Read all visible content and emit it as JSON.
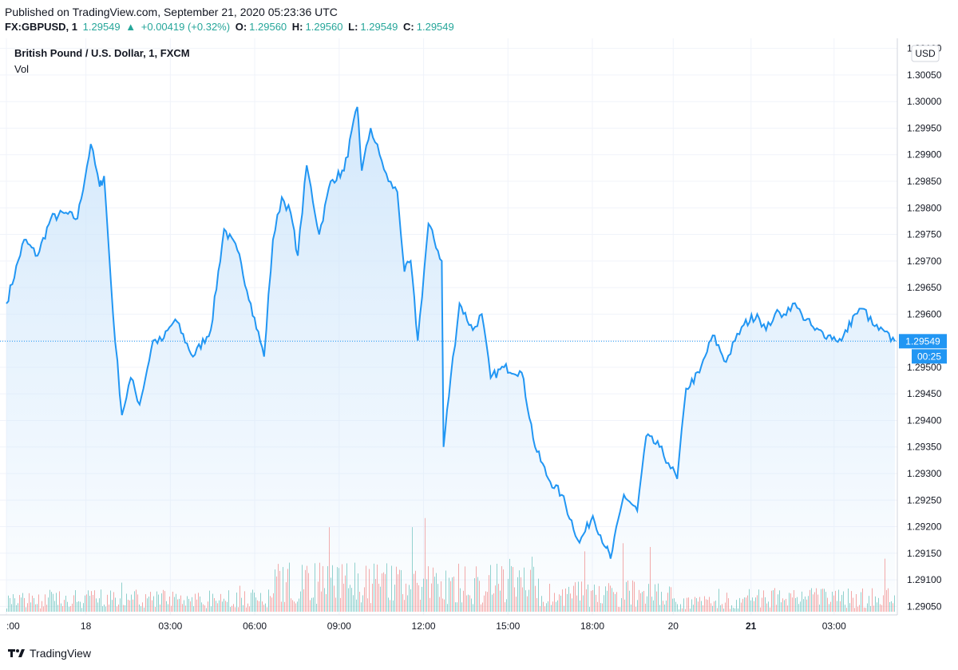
{
  "header": {
    "published": "Published on TradingView.com, September 21, 2020 05:23:36 UTC",
    "symbol": "FX:GBPUSD, 1",
    "last": "1.29549",
    "change": "+0.00419 (+0.32%)",
    "o_label": "O:",
    "o_value": "1.29560",
    "h_label": "H:",
    "h_value": "1.29560",
    "l_label": "L:",
    "l_value": "1.29549",
    "c_label": "C:",
    "c_value": "1.29549"
  },
  "chart_title": "British Pound / U.S. Dollar, 1, FXCM",
  "vol_label": "Vol",
  "currency_label": "USD",
  "countdown": "00:25",
  "footer": {
    "brand": "TradingView"
  },
  "colors": {
    "line": "#2196f3",
    "area_top": "#cfe6fb",
    "vol_up": "#26a69a",
    "vol_down": "#ef5350",
    "grid": "#f0f3fa"
  },
  "chart_data": {
    "type": "area",
    "title": "British Pound / U.S. Dollar, 1, FXCM",
    "ylim": [
      1.2904,
      1.3011
    ],
    "y_ticks": [
      "1.29050",
      "1.29100",
      "1.29150",
      "1.29200",
      "1.29250",
      "1.29300",
      "1.29350",
      "1.29400",
      "1.29450",
      "1.29500",
      "1.29550",
      "1.29600",
      "1.29650",
      "1.29700",
      "1.29750",
      "1.29800",
      "1.29850",
      "1.29900",
      "1.29950",
      "1.30000",
      "1.30050",
      "1.30100"
    ],
    "x_ticks": [
      {
        "label": ":00",
        "pos": 0.0,
        "bold": false
      },
      {
        "label": "18",
        "pos": 0.0895,
        "bold": false
      },
      {
        "label": "03:00",
        "pos": 0.1845,
        "bold": false
      },
      {
        "label": "06:00",
        "pos": 0.2795,
        "bold": false
      },
      {
        "label": "09:00",
        "pos": 0.3745,
        "bold": false
      },
      {
        "label": "12:00",
        "pos": 0.4695,
        "bold": false
      },
      {
        "label": "15:00",
        "pos": 0.5645,
        "bold": false
      },
      {
        "label": "18:00",
        "pos": 0.6595,
        "bold": false
      },
      {
        "label": "20",
        "pos": 0.7505,
        "bold": false
      },
      {
        "label": "21",
        "pos": 0.838,
        "bold": true
      },
      {
        "label": "03:00",
        "pos": 0.9315,
        "bold": false
      }
    ],
    "last_price": 1.29549,
    "series": [
      {
        "x": [
          0,
          0.02,
          0.035,
          0.05,
          0.065,
          0.08,
          0.095,
          0.105,
          0.11,
          0.12,
          0.13,
          0.14,
          0.15,
          0.165,
          0.175,
          0.19,
          0.21,
          0.23,
          0.245,
          0.26,
          0.275,
          0.29,
          0.3,
          0.31,
          0.32,
          0.328,
          0.338,
          0.352,
          0.365,
          0.38,
          0.395,
          0.4,
          0.41,
          0.42,
          0.43,
          0.44,
          0.448,
          0.455,
          0.463,
          0.475,
          0.49,
          0.492,
          0.5,
          0.51,
          0.525,
          0.535,
          0.545,
          0.56,
          0.58,
          0.595,
          0.61,
          0.625,
          0.645,
          0.66,
          0.675,
          0.68,
          0.695,
          0.71,
          0.72,
          0.735,
          0.745,
          0.755,
          0.765,
          0.78,
          0.795,
          0.81,
          0.82,
          0.83,
          0.845,
          0.855,
          0.865,
          0.875,
          0.885,
          0.895,
          0.91,
          0.925,
          0.94,
          0.955,
          0.965,
          0.975,
          1.0
        ],
        "values": [
          1.2962,
          1.2974,
          1.2971,
          1.2978,
          1.2979,
          1.2978,
          1.2992,
          1.2984,
          1.2986,
          1.296,
          1.2941,
          1.2948,
          1.2943,
          1.2955,
          1.2955,
          1.2959,
          1.2952,
          1.2957,
          1.2976,
          1.2972,
          1.2962,
          1.2952,
          1.2974,
          1.2982,
          1.2979,
          1.2971,
          1.2988,
          1.2975,
          1.2985,
          1.2987,
          1.2999,
          1.2987,
          1.2995,
          1.299,
          1.2985,
          1.2983,
          1.2968,
          1.297,
          1.2955,
          1.2977,
          1.297,
          1.2935,
          1.2948,
          1.2962,
          1.2957,
          1.296,
          1.2948,
          1.295,
          1.2949,
          1.2935,
          1.2929,
          1.2926,
          1.2917,
          1.2922,
          1.2916,
          1.2914,
          1.2926,
          1.2923,
          1.2937,
          1.2935,
          1.2932,
          1.2929,
          1.2946,
          1.2949,
          1.2956,
          1.2951,
          1.2955,
          1.2958,
          1.296,
          1.2957,
          1.296,
          1.296,
          1.2962,
          1.296,
          1.2957,
          1.2956,
          1.2955,
          1.296,
          1.2961,
          1.2958,
          1.29549
        ]
      }
    ]
  }
}
